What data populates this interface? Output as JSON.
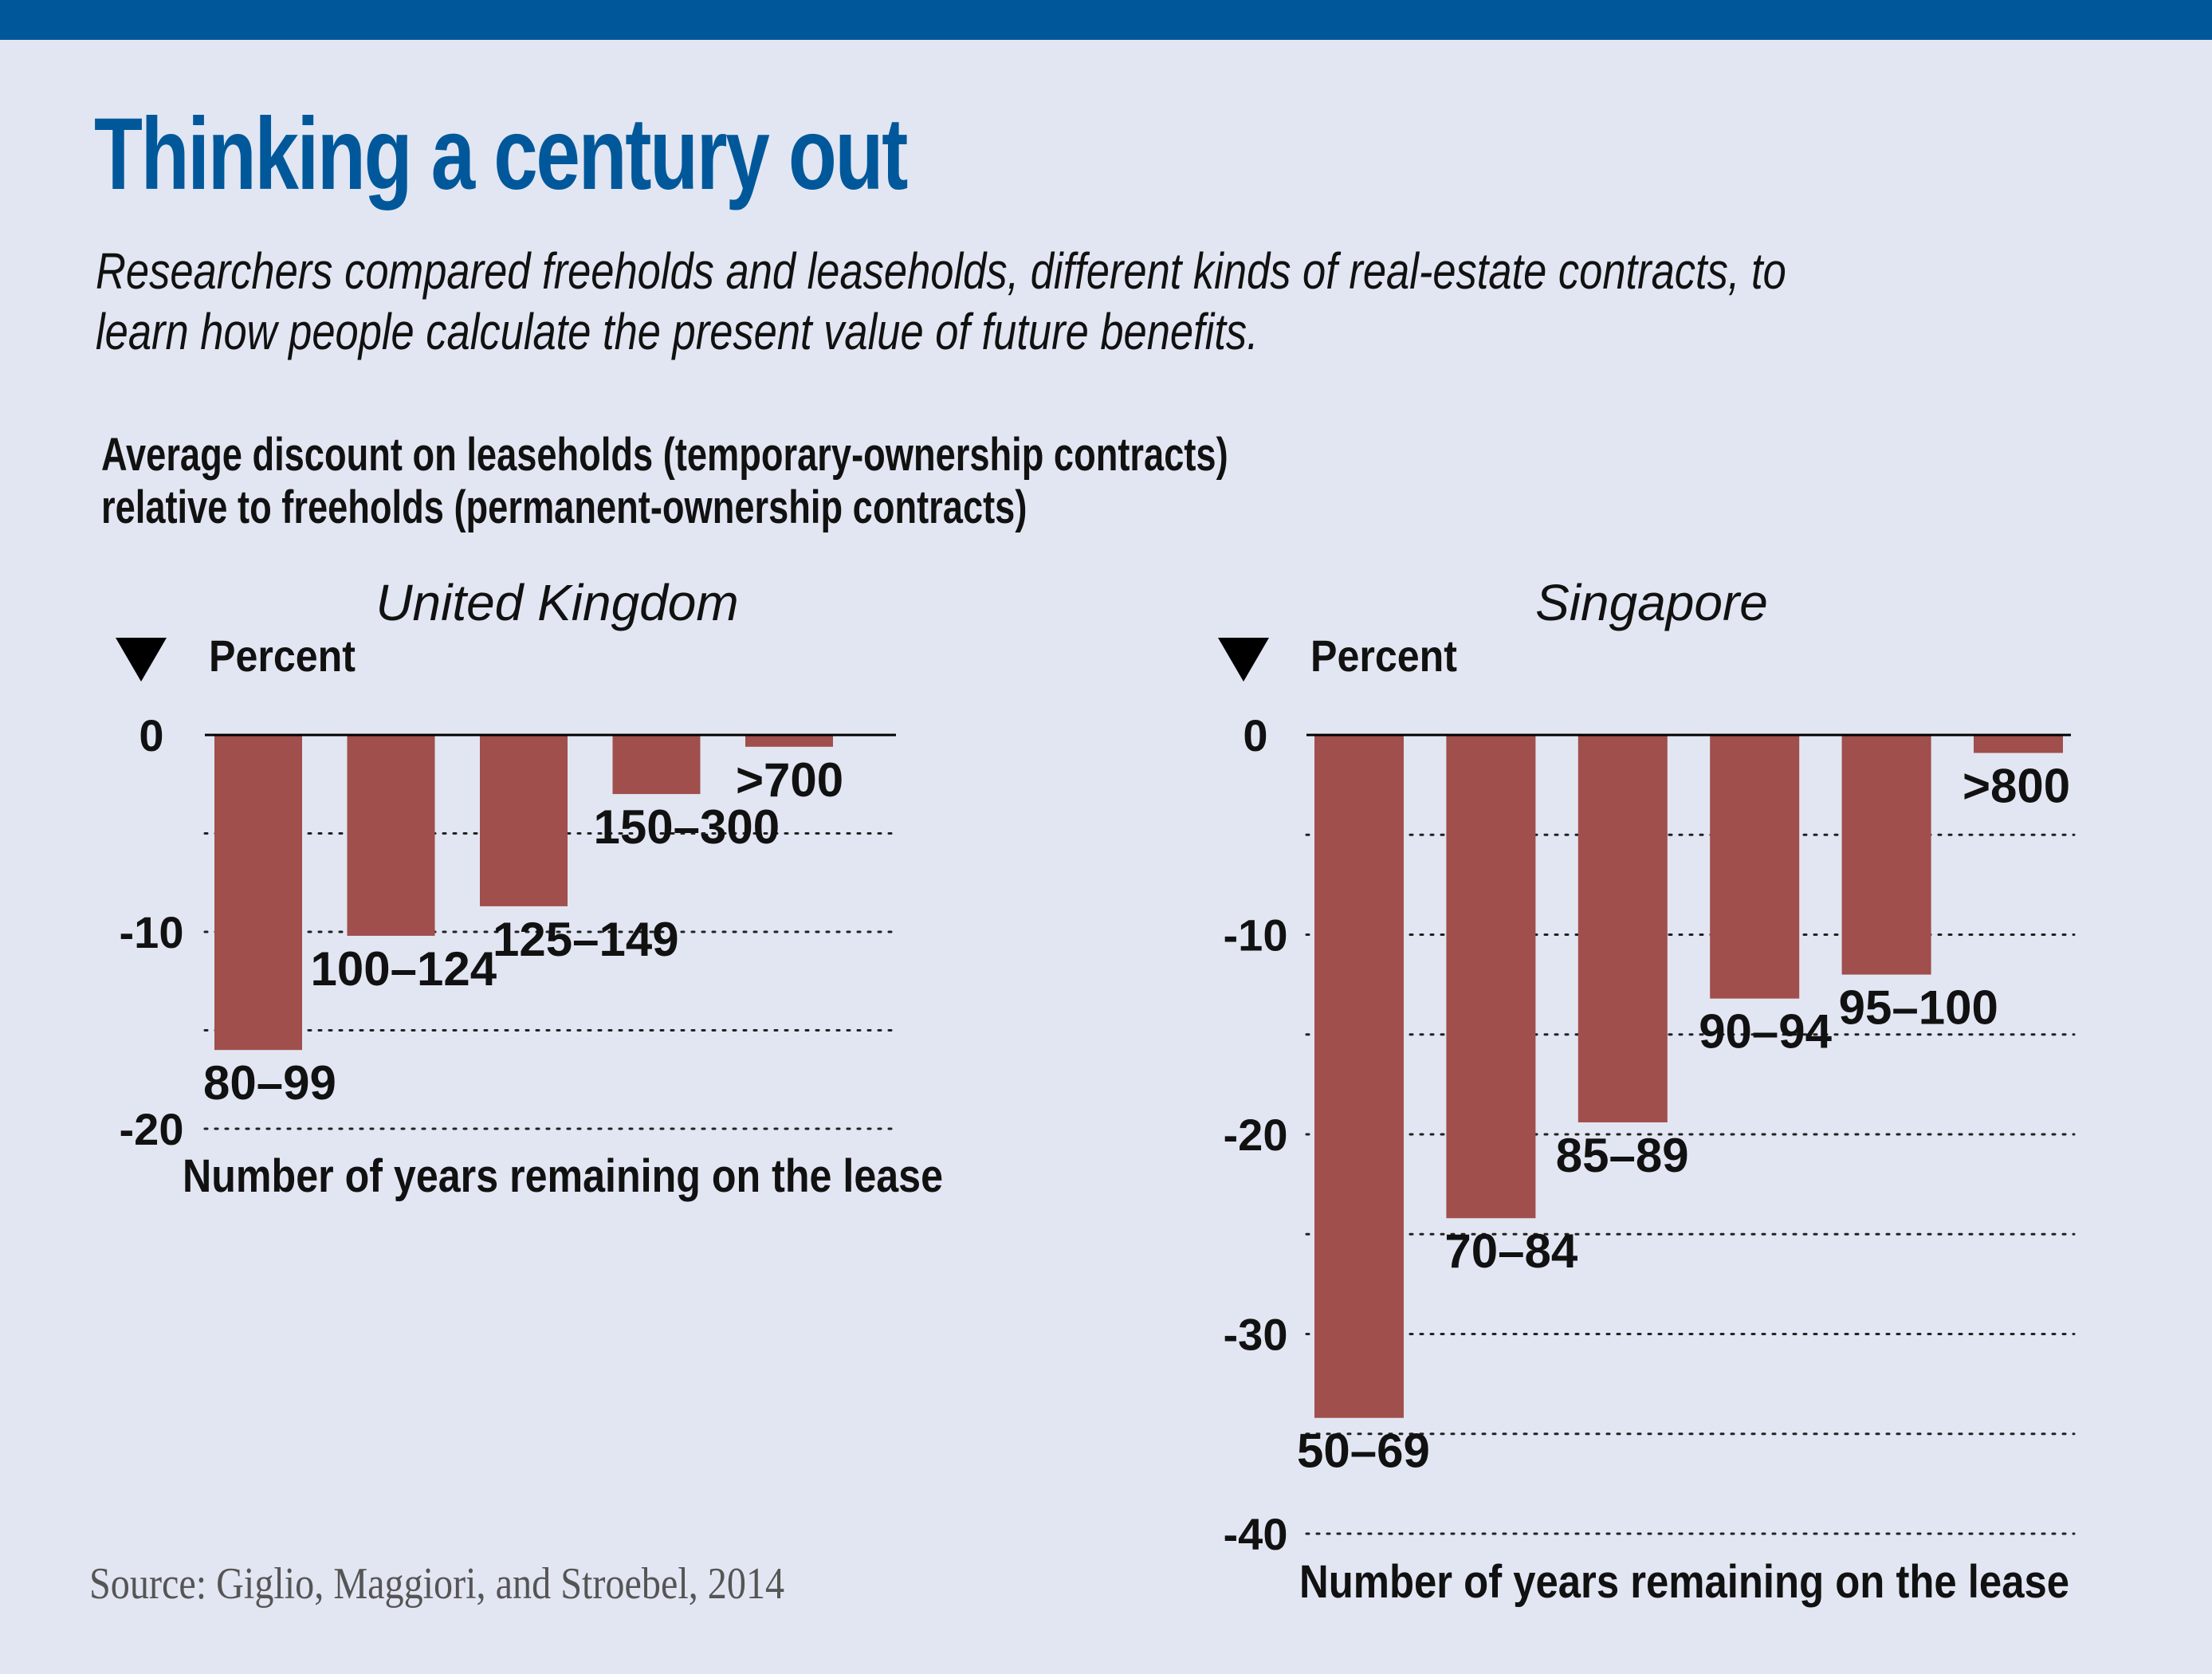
{
  "header": {
    "title": "Thinking a century out",
    "subtitle_lines": [
      "Researchers compared freeholds and leaseholds, different kinds of real-estate contracts, to",
      "learn how people calculate the present value of future benefits."
    ],
    "chart_subtitle_lines": [
      "Average discount on leaseholds (temporary-ownership contracts)",
      "relative to freeholds (permanent-ownership contracts)"
    ]
  },
  "colors": {
    "brand": "#00589b",
    "bar": "#a04f4c",
    "background": "#e2e6f2"
  },
  "source": "Source: Giglio, Maggiori, and Stroebel, 2014",
  "chart_data": [
    {
      "type": "bar",
      "title": "United Kingdom",
      "ylabel": "Percent",
      "xlabel": "Number of years remaining on the lease",
      "categories": [
        "80–99",
        "100–124",
        "125–149",
        "150–300",
        ">700"
      ],
      "values": [
        -16.0,
        -10.2,
        -8.7,
        -3.0,
        -0.6
      ],
      "ylim": [
        -20,
        0
      ],
      "yticks": [
        0,
        -10,
        -20
      ],
      "ytick_labels": [
        "0",
        "-10",
        "-20"
      ],
      "gridlines": [
        -5,
        -10,
        -15,
        -20
      ],
      "grid": true,
      "legend": "none"
    },
    {
      "type": "bar",
      "title": "Singapore",
      "ylabel": "Percent",
      "xlabel": "Number of years remaining on the lease",
      "categories": [
        "50–69",
        "70–84",
        "85–89",
        "90–94",
        "95–100",
        ">800"
      ],
      "values": [
        -34.2,
        -24.2,
        -19.4,
        -13.2,
        -12.0,
        -0.9
      ],
      "ylim": [
        -40,
        0
      ],
      "yticks": [
        0,
        -10,
        -20,
        -30,
        -40
      ],
      "ytick_labels": [
        "0",
        "-10",
        "-20",
        "-30",
        "-40"
      ],
      "gridlines": [
        -5,
        -10,
        -15,
        -20,
        -25,
        -30,
        -35,
        -40
      ],
      "grid": true,
      "legend": "none"
    }
  ]
}
